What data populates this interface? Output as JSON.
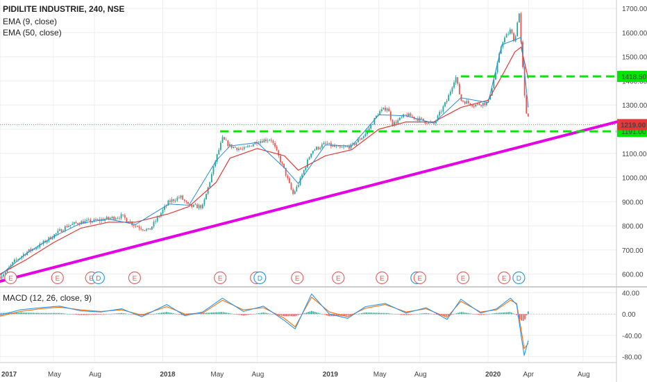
{
  "header": {
    "symbol_line": "PIDILITE INDUSTRIE, 240, NSE",
    "ema_fast": "EMA (9, close)",
    "ema_slow": "EMA (50, close)",
    "macd_title": "MACD (12, 26, close, 9)"
  },
  "chart_data": [
    {
      "type": "line",
      "title": "PIDILITE INDUSTRIE, 240, NSE",
      "y_axis": {
        "ticks": [
          600,
          700,
          800,
          900,
          1000,
          1100,
          1200,
          1300,
          1400,
          1500,
          1600,
          1700
        ],
        "tick_labels": [
          "600.00",
          "700.00",
          "800.00",
          "900.00",
          "1000.00",
          "1100.00",
          "1200.00",
          "1300.00",
          "1400.00",
          "1500.00",
          "1600.00",
          "1700.00"
        ],
        "range": [
          550,
          1735
        ],
        "position": "right"
      },
      "x_axis": {
        "tick_labels": [
          "2017",
          "May",
          "Aug",
          "2018",
          "May",
          "Aug",
          "2019",
          "May",
          "Aug",
          "2020",
          "Apr",
          "Aug"
        ],
        "tick_dates": [
          "2017-01-01",
          "2017-05-01",
          "2017-08-01",
          "2018-01-01",
          "2018-05-01",
          "2018-08-01",
          "2019-01-01",
          "2019-05-01",
          "2019-08-01",
          "2020-01-01",
          "2020-04-01",
          "2020-08-01"
        ],
        "range": [
          "2017-01-01",
          "2020-10-15"
        ]
      },
      "grid": true,
      "price_series": {
        "name": "Price",
        "x": [
          "2017-01-01",
          "2017-01-15",
          "2017-02-01",
          "2017-03-01",
          "2017-04-01",
          "2017-05-01",
          "2017-06-01",
          "2017-07-01",
          "2017-08-01",
          "2017-09-01",
          "2017-10-01",
          "2017-11-01",
          "2017-12-01",
          "2018-01-15",
          "2018-02-10",
          "2018-03-01",
          "2018-04-01",
          "2018-05-01",
          "2018-05-15",
          "2018-06-01",
          "2018-07-01",
          "2018-08-01",
          "2018-09-01",
          "2018-10-01",
          "2018-10-20",
          "2018-11-01",
          "2018-12-01",
          "2019-01-01",
          "2019-02-01",
          "2019-03-01",
          "2019-04-01",
          "2019-05-01",
          "2019-05-20",
          "2019-06-01",
          "2019-07-01",
          "2019-08-01",
          "2019-09-01",
          "2019-10-01",
          "2019-10-20",
          "2019-11-01",
          "2019-12-01",
          "2020-01-01",
          "2020-01-20",
          "2020-02-01",
          "2020-02-20",
          "2020-03-01",
          "2020-03-10",
          "2020-03-15",
          "2020-03-20",
          "2020-03-25",
          "2020-03-31"
        ],
        "values": [
          590,
          610,
          650,
          690,
          720,
          760,
          800,
          815,
          820,
          830,
          840,
          800,
          780,
          900,
          920,
          880,
          880,
          1080,
          1160,
          1130,
          1115,
          1150,
          1160,
          1030,
          930,
          970,
          1110,
          1140,
          1120,
          1130,
          1180,
          1270,
          1290,
          1220,
          1260,
          1240,
          1220,
          1320,
          1420,
          1320,
          1300,
          1310,
          1450,
          1560,
          1610,
          1560,
          1700,
          1550,
          1420,
          1270,
          1260
        ]
      },
      "ema_fast": {
        "name": "EMA (9, close)",
        "x": [
          "2017-01-01",
          "2017-03-01",
          "2017-05-01",
          "2017-07-01",
          "2017-09-01",
          "2017-11-01",
          "2018-01-15",
          "2018-03-01",
          "2018-05-01",
          "2018-06-01",
          "2018-08-01",
          "2018-10-01",
          "2018-11-01",
          "2019-01-01",
          "2019-03-01",
          "2019-05-01",
          "2019-07-01",
          "2019-09-01",
          "2019-11-01",
          "2020-01-01",
          "2020-02-01",
          "2020-03-01",
          "2020-03-15",
          "2020-03-31"
        ],
        "values": [
          595,
          685,
          755,
          810,
          828,
          805,
          890,
          885,
          1070,
          1130,
          1145,
          1040,
          975,
          1135,
          1130,
          1260,
          1255,
          1225,
          1330,
          1310,
          1550,
          1570,
          1580,
          1290
        ]
      },
      "ema_slow": {
        "name": "EMA (50, close)",
        "x": [
          "2017-01-01",
          "2017-03-01",
          "2017-05-01",
          "2017-07-01",
          "2017-09-01",
          "2017-11-01",
          "2018-01-15",
          "2018-03-01",
          "2018-05-01",
          "2018-06-01",
          "2018-08-01",
          "2018-10-01",
          "2018-11-01",
          "2019-01-01",
          "2019-03-01",
          "2019-05-01",
          "2019-07-01",
          "2019-09-01",
          "2019-11-01",
          "2020-01-01",
          "2020-02-01",
          "2020-03-01",
          "2020-03-15",
          "2020-03-31"
        ],
        "values": [
          600,
          660,
          730,
          790,
          815,
          815,
          850,
          880,
          980,
          1080,
          1120,
          1090,
          1030,
          1090,
          1115,
          1200,
          1230,
          1230,
          1290,
          1320,
          1420,
          1520,
          1540,
          1410
        ]
      },
      "horizontal_levels": [
        {
          "value": 1418.5,
          "label": "1418.50",
          "from": "2019-11-01",
          "color": "#00e600"
        },
        {
          "value": 1191.0,
          "label": "1191.00",
          "from": "2018-05-10",
          "color": "#00e600"
        }
      ],
      "last_price": {
        "value": 1219.0,
        "label": "1219.00",
        "color": "#e23a3a"
      },
      "trendline": {
        "x": [
          "2017-01-01",
          "2020-10-15"
        ],
        "values": [
          570,
          1230
        ],
        "color": "#e600e6"
      },
      "event_markers": [
        {
          "x": "2017-01-25",
          "label": "E",
          "kind": "earnings"
        },
        {
          "x": "2017-05-10",
          "label": "E",
          "kind": "earnings"
        },
        {
          "x": "2017-07-25",
          "label": "E",
          "kind": "earnings"
        },
        {
          "x": "2017-08-10",
          "label": "D",
          "kind": "dividend"
        },
        {
          "x": "2017-10-30",
          "label": "E",
          "kind": "earnings"
        },
        {
          "x": "2018-05-10",
          "label": "E",
          "kind": "earnings"
        },
        {
          "x": "2018-07-30",
          "label": "E",
          "kind": "earnings"
        },
        {
          "x": "2018-08-07",
          "label": "D",
          "kind": "dividend"
        },
        {
          "x": "2018-10-30",
          "label": "E",
          "kind": "earnings"
        },
        {
          "x": "2019-01-30",
          "label": "E",
          "kind": "earnings"
        },
        {
          "x": "2019-05-08",
          "label": "E",
          "kind": "earnings"
        },
        {
          "x": "2019-07-25",
          "label": "D",
          "kind": "dividend"
        },
        {
          "x": "2019-08-01",
          "label": "E",
          "kind": "earnings"
        },
        {
          "x": "2019-11-06",
          "label": "E",
          "kind": "earnings"
        },
        {
          "x": "2020-02-06",
          "label": "E",
          "kind": "earnings"
        },
        {
          "x": "2020-03-10",
          "label": "D",
          "kind": "dividend"
        }
      ]
    },
    {
      "type": "line",
      "title": "MACD (12, 26, close, 9)",
      "y_axis": {
        "ticks": [
          40,
          0,
          -40,
          -80
        ],
        "tick_labels": [
          "40.00",
          "0.00",
          "-40.00",
          "-80.00"
        ],
        "range": [
          -90,
          50
        ],
        "position": "right"
      },
      "grid": true,
      "macd": {
        "x": [
          "2017-01-01",
          "2017-02-15",
          "2017-04-01",
          "2017-05-15",
          "2017-07-01",
          "2017-08-15",
          "2017-10-01",
          "2017-11-15",
          "2018-01-10",
          "2018-02-20",
          "2018-04-01",
          "2018-05-15",
          "2018-07-01",
          "2018-08-15",
          "2018-10-01",
          "2018-10-25",
          "2018-12-01",
          "2019-01-10",
          "2019-02-20",
          "2019-04-01",
          "2019-05-15",
          "2019-07-01",
          "2019-08-15",
          "2019-10-01",
          "2019-11-01",
          "2019-12-15",
          "2020-01-20",
          "2020-02-20",
          "2020-03-05",
          "2020-03-15",
          "2020-03-22",
          "2020-03-31"
        ],
        "values": [
          -2,
          8,
          12,
          15,
          6,
          4,
          10,
          -5,
          18,
          -3,
          4,
          30,
          5,
          15,
          -12,
          -28,
          38,
          0,
          -8,
          14,
          20,
          2,
          12,
          -10,
          28,
          2,
          10,
          30,
          18,
          -40,
          -78,
          -50
        ]
      },
      "signal": {
        "x": [
          "2017-01-01",
          "2017-02-15",
          "2017-04-01",
          "2017-05-15",
          "2017-07-01",
          "2017-08-15",
          "2017-10-01",
          "2017-11-15",
          "2018-01-10",
          "2018-02-20",
          "2018-04-01",
          "2018-05-15",
          "2018-07-01",
          "2018-08-15",
          "2018-10-01",
          "2018-10-25",
          "2018-12-01",
          "2019-01-10",
          "2019-02-20",
          "2019-04-01",
          "2019-05-15",
          "2019-07-01",
          "2019-08-15",
          "2019-10-01",
          "2019-11-01",
          "2019-12-15",
          "2020-01-20",
          "2020-02-20",
          "2020-03-05",
          "2020-03-15",
          "2020-03-22",
          "2020-03-31"
        ],
        "values": [
          -4,
          5,
          10,
          13,
          8,
          5,
          8,
          -2,
          14,
          0,
          2,
          26,
          8,
          12,
          -8,
          -24,
          32,
          4,
          -5,
          11,
          18,
          4,
          10,
          -6,
          24,
          4,
          8,
          26,
          20,
          -28,
          -65,
          -55
        ]
      },
      "histogram_colors": {
        "up": "#26a69a",
        "down": "#ef5350"
      }
    }
  ],
  "colors": {
    "macd_line": "#2196f3",
    "signal_line": "#ff6d00",
    "ema_fast": "#2a8bd9",
    "ema_slow": "#e53935",
    "candle_up": "#26a69a",
    "candle_down": "#ef5350",
    "earnings_marker": "#e06666",
    "dividend_marker": "#2b9bd8"
  }
}
